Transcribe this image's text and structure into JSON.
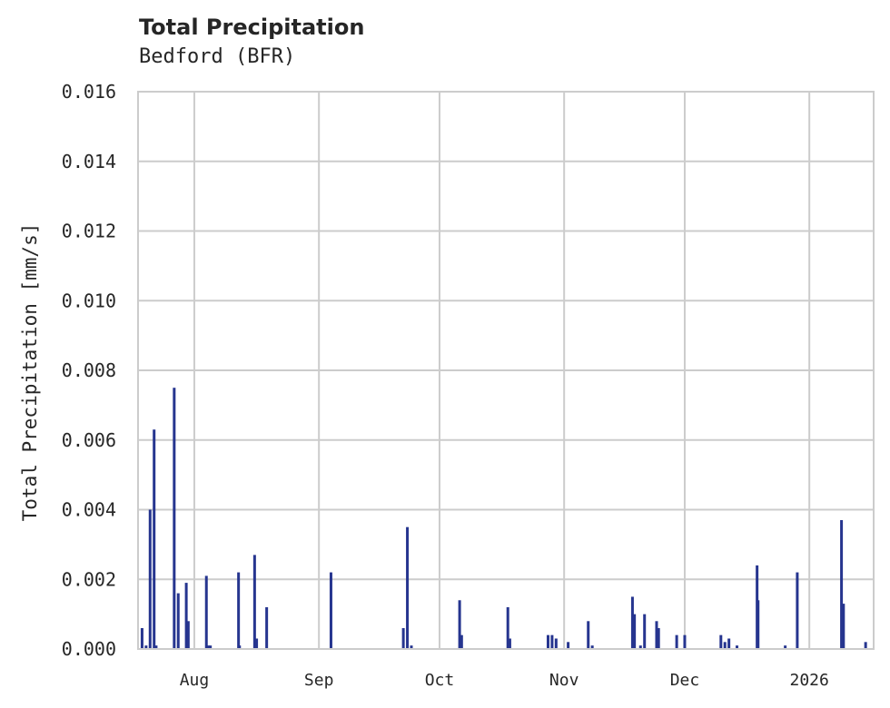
{
  "header": {
    "title": "Total Precipitation",
    "subtitle": "Bedford (BFR)"
  },
  "colors": {
    "series": "#26358f",
    "grid": "#cccccc",
    "text": "#262626"
  },
  "chart_data": {
    "type": "bar",
    "title": "Total Precipitation",
    "subtitle": "Bedford (BFR)",
    "xlabel": "",
    "ylabel": "Total Precipitation [mm/s]",
    "ylim": [
      0.0,
      0.016
    ],
    "yticks": [
      "0.000",
      "0.002",
      "0.004",
      "0.006",
      "0.008",
      "0.010",
      "0.012",
      "0.014",
      "0.016"
    ],
    "xticks": [
      "Aug",
      "Sep",
      "Oct",
      "Nov",
      "Dec",
      "2026"
    ],
    "xrange": [
      "2025-07-18",
      "2026-01-17"
    ],
    "grid": true,
    "legend": null,
    "series": [
      {
        "name": "Total Precipitation",
        "points": [
          {
            "date": "2025-07-19",
            "value": 0.0006
          },
          {
            "date": "2025-07-20",
            "value": 0.0001
          },
          {
            "date": "2025-07-21",
            "value": 0.004
          },
          {
            "date": "2025-07-22",
            "value": 0.0063
          },
          {
            "date": "2025-07-22T12",
            "value": 0.0001
          },
          {
            "date": "2025-07-27",
            "value": 0.0075
          },
          {
            "date": "2025-07-28",
            "value": 0.0016
          },
          {
            "date": "2025-07-30",
            "value": 0.0019
          },
          {
            "date": "2025-07-30T12",
            "value": 0.0008
          },
          {
            "date": "2025-08-04",
            "value": 0.0021
          },
          {
            "date": "2025-08-04T12",
            "value": 0.0001
          },
          {
            "date": "2025-08-05",
            "value": 0.0001
          },
          {
            "date": "2025-08-12",
            "value": 0.0022
          },
          {
            "date": "2025-08-12T06",
            "value": 0.0001
          },
          {
            "date": "2025-08-16",
            "value": 0.0027
          },
          {
            "date": "2025-08-16T12",
            "value": 0.0003
          },
          {
            "date": "2025-08-19",
            "value": 0.0012
          },
          {
            "date": "2025-09-04",
            "value": 0.0022
          },
          {
            "date": "2025-09-22",
            "value": 0.0006
          },
          {
            "date": "2025-09-23",
            "value": 0.0035
          },
          {
            "date": "2025-09-24",
            "value": 0.0001
          },
          {
            "date": "2025-10-06",
            "value": 0.0014
          },
          {
            "date": "2025-10-06T12",
            "value": 0.0004
          },
          {
            "date": "2025-10-18",
            "value": 0.0012
          },
          {
            "date": "2025-10-18T12",
            "value": 0.0003
          },
          {
            "date": "2025-10-28",
            "value": 0.0004
          },
          {
            "date": "2025-10-29",
            "value": 0.0004
          },
          {
            "date": "2025-10-30",
            "value": 0.0003
          },
          {
            "date": "2025-11-02",
            "value": 0.0002
          },
          {
            "date": "2025-11-07",
            "value": 0.0008
          },
          {
            "date": "2025-11-08",
            "value": 0.0001
          },
          {
            "date": "2025-11-18",
            "value": 0.0015
          },
          {
            "date": "2025-11-18T12",
            "value": 0.001
          },
          {
            "date": "2025-11-20",
            "value": 0.0001
          },
          {
            "date": "2025-11-21",
            "value": 0.001
          },
          {
            "date": "2025-11-24",
            "value": 0.0008
          },
          {
            "date": "2025-11-24T12",
            "value": 0.0006
          },
          {
            "date": "2025-11-29",
            "value": 0.0004
          },
          {
            "date": "2025-12-01",
            "value": 0.0004
          },
          {
            "date": "2025-12-10",
            "value": 0.0004
          },
          {
            "date": "2025-12-11",
            "value": 0.0002
          },
          {
            "date": "2025-12-12",
            "value": 0.0003
          },
          {
            "date": "2025-12-14",
            "value": 0.0001
          },
          {
            "date": "2025-12-19",
            "value": 0.0024
          },
          {
            "date": "2025-12-19T06",
            "value": 0.0014
          },
          {
            "date": "2025-12-26",
            "value": 0.0001
          },
          {
            "date": "2025-12-29",
            "value": 0.0022
          },
          {
            "date": "2026-01-09",
            "value": 0.0037
          },
          {
            "date": "2026-01-09T12",
            "value": 0.0013
          },
          {
            "date": "2026-01-15",
            "value": 0.0002
          }
        ]
      }
    ]
  }
}
